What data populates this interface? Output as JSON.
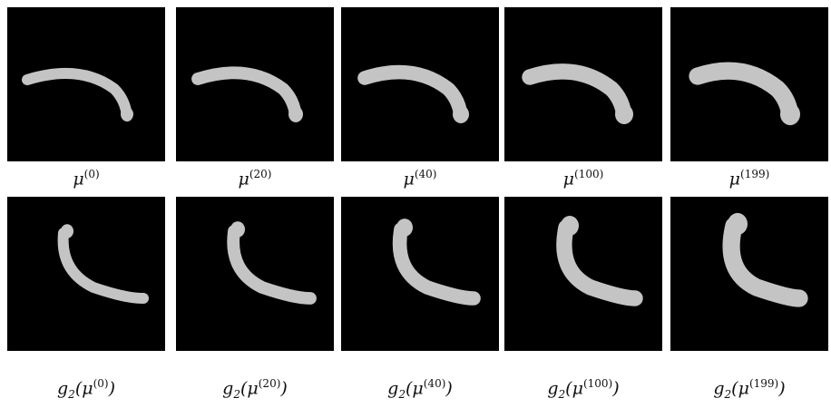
{
  "figure": {
    "top_labels": [
      [
        {
          "text": "μ"
        },
        {
          "sup": "(0)"
        }
      ],
      [
        {
          "text": "μ"
        },
        {
          "sup": "(20)"
        }
      ],
      [
        {
          "text": "μ"
        },
        {
          "sup": "(40)"
        }
      ],
      [
        {
          "text": "μ"
        },
        {
          "sup": "(100)"
        }
      ],
      [
        {
          "text": "μ"
        },
        {
          "sup": "(199)"
        }
      ]
    ],
    "bottom_labels": [
      [
        {
          "text": "g"
        },
        {
          "sub": "2"
        },
        {
          "text": "(μ"
        },
        {
          "sup": "(0)"
        },
        {
          "text": ")"
        }
      ],
      [
        {
          "text": "g"
        },
        {
          "sub": "2"
        },
        {
          "text": "(μ"
        },
        {
          "sup": "(20)"
        },
        {
          "text": ")"
        }
      ],
      [
        {
          "text": "g"
        },
        {
          "sub": "2"
        },
        {
          "text": "(μ"
        },
        {
          "sup": "(40)"
        },
        {
          "text": ")"
        }
      ],
      [
        {
          "text": "g"
        },
        {
          "sub": "2"
        },
        {
          "text": "(μ"
        },
        {
          "sup": "(100)"
        },
        {
          "text": ")"
        }
      ],
      [
        {
          "text": "g"
        },
        {
          "sub": "2"
        },
        {
          "text": "(μ"
        },
        {
          "sup": "(199)"
        },
        {
          "text": ")"
        }
      ]
    ]
  }
}
